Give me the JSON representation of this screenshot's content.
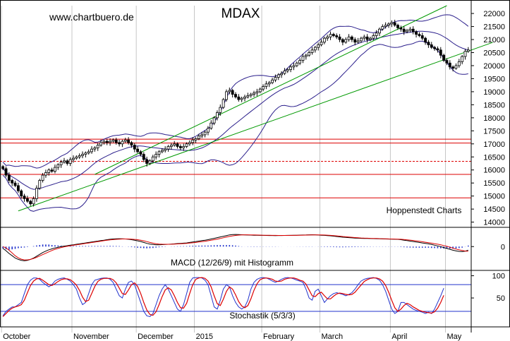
{
  "watermark": "www.chartbuero.de",
  "credit": "Hoppenstedt Charts",
  "colors": {
    "background": "#ffffff",
    "grid": "#b8b8b8",
    "channel": "#009900",
    "bollinger": "#2b1f8c",
    "support_resistance": "#dd0000",
    "macd_line": "#000000",
    "macd_signal": "#dd0000",
    "macd_hist": "#2233cc",
    "stoch_k": "#2233cc",
    "stoch_d": "#dd0000"
  },
  "chart_data": [
    {
      "type": "candlestick",
      "title": "MDAX",
      "y_ticks": [
        22000,
        21500,
        21000,
        20500,
        20000,
        19500,
        19000,
        18500,
        18000,
        17500,
        17000,
        16500,
        16000,
        15500,
        15000,
        14500,
        14000
      ],
      "ylim": [
        13800,
        22300
      ],
      "x_labels": [
        "October",
        "November",
        "December",
        "2015",
        "February",
        "March",
        "April",
        "May"
      ],
      "x_label_index": [
        0,
        23,
        44,
        63,
        85,
        104,
        127,
        145
      ],
      "period_count": 153,
      "closes": [
        16050,
        15800,
        15600,
        15500,
        15400,
        15200,
        15000,
        14900,
        14800,
        14700,
        14900,
        15300,
        15600,
        15800,
        15900,
        16000,
        15950,
        16100,
        16200,
        16300,
        16350,
        16250,
        16400,
        16450,
        16500,
        16550,
        16600,
        16650,
        16700,
        16800,
        16850,
        16950,
        17050,
        17100,
        17050,
        17100,
        17150,
        17050,
        17000,
        17100,
        17150,
        17050,
        16950,
        16800,
        16700,
        16600,
        16400,
        16250,
        16350,
        16500,
        16600,
        16700,
        16750,
        16800,
        16900,
        16950,
        17000,
        16900,
        16850,
        16900,
        17000,
        17050,
        17150,
        17200,
        17300,
        17350,
        17450,
        17600,
        17800,
        18000,
        18200,
        18400,
        18700,
        19000,
        19050,
        18900,
        18800,
        18700,
        18750,
        18800,
        18850,
        18900,
        18950,
        19000,
        19100,
        19200,
        19300,
        19350,
        19450,
        19550,
        19650,
        19700,
        19800,
        19850,
        19950,
        20000,
        20100,
        20200,
        20350,
        20400,
        20500,
        20600,
        20700,
        20800,
        20900,
        21050,
        21100,
        21200,
        21150,
        21100,
        21000,
        20900,
        21000,
        21100,
        21000,
        20900,
        20950,
        21050,
        21100,
        21000,
        21050,
        21150,
        21250,
        21400,
        21500,
        21550,
        21600,
        21650,
        21550,
        21450,
        21400,
        21300,
        21350,
        21400,
        21300,
        21200,
        21150,
        21050,
        20900,
        20800,
        20700,
        20650,
        20600,
        20400,
        20200,
        20100,
        19950,
        19900,
        20000,
        20150,
        20350,
        20550,
        20600
      ],
      "horizontal_lines": [
        {
          "value": 17180,
          "style": "solid"
        },
        {
          "value": 17030,
          "style": "solid"
        },
        {
          "value": 16330,
          "style": "dashed"
        },
        {
          "value": 15830,
          "style": "solid"
        },
        {
          "value": 14930,
          "style": "solid"
        }
      ],
      "trend_channel": {
        "upper": {
          "from": {
            "i": 30,
            "v": 15830
          },
          "to": {
            "i": 145,
            "v": 22300
          }
        },
        "lower": {
          "from": {
            "i": 5,
            "v": 14430
          },
          "to": {
            "i": 160,
            "v": 20890
          }
        }
      }
    },
    {
      "type": "line",
      "title": "MACD (12/26/9) mit Histogramm",
      "y_ticks": [
        0
      ],
      "ylim": [
        -520,
        420
      ],
      "series": [
        {
          "role": "macd",
          "values": [
            -40,
            -90,
            -150,
            -200,
            -250,
            -280,
            -300,
            -310,
            -300,
            -280,
            -250,
            -210,
            -170,
            -130,
            -100,
            -70,
            -50,
            -30,
            -15,
            0,
            10,
            20,
            30,
            40,
            50,
            60,
            70,
            80,
            90,
            100,
            110,
            120,
            130,
            140,
            150,
            160,
            165,
            170,
            172,
            170,
            165,
            160,
            150,
            140,
            125,
            110,
            90,
            70,
            55,
            45,
            40,
            40,
            42,
            45,
            50,
            55,
            60,
            65,
            70,
            75,
            80,
            90,
            100,
            110,
            120,
            130,
            140,
            150,
            165,
            180,
            195,
            210,
            225,
            240,
            255,
            262,
            265,
            262,
            258,
            255,
            252,
            250,
            248,
            246,
            245,
            244,
            243,
            242,
            241,
            240,
            241,
            242,
            243,
            244,
            245,
            246,
            248,
            250,
            252,
            254,
            256,
            258,
            256,
            252,
            248,
            244,
            240,
            235,
            228,
            220,
            212,
            205,
            200,
            195,
            190,
            186,
            183,
            180,
            178,
            176,
            175,
            174,
            172,
            170,
            168,
            166,
            164,
            162,
            160,
            158,
            150,
            140,
            130,
            120,
            110,
            100,
            90,
            80,
            70,
            60,
            45,
            30,
            15,
            0,
            -20,
            -40,
            -60,
            -80,
            -95,
            -105,
            -110,
            -100,
            -80
          ]
        },
        {
          "role": "signal",
          "values": [
            0,
            -30,
            -80,
            -140,
            -200,
            -245,
            -275,
            -290,
            -290,
            -280,
            -260,
            -235,
            -205,
            -175,
            -145,
            -115,
            -85,
            -60,
            -40,
            -20,
            -5,
            8,
            18,
            28,
            38,
            48,
            58,
            68,
            78,
            88,
            98,
            108,
            118,
            128,
            138,
            145,
            152,
            158,
            162,
            165,
            166,
            165,
            162,
            157,
            150,
            140,
            125,
            108,
            90,
            75,
            62,
            55,
            52,
            50,
            50,
            52,
            55,
            58,
            62,
            66,
            70,
            76,
            83,
            91,
            99,
            108,
            117,
            127,
            138,
            150,
            163,
            177,
            192,
            207,
            221,
            233,
            243,
            250,
            254,
            256,
            256,
            255,
            254,
            252,
            250,
            248,
            247,
            246,
            245,
            244,
            243,
            243,
            243,
            243,
            244,
            245,
            246,
            247,
            249,
            250,
            252,
            254,
            255,
            255,
            254,
            252,
            249,
            245,
            240,
            234,
            227,
            220,
            214,
            208,
            202,
            197,
            192,
            188,
            185,
            182,
            180,
            178,
            176,
            174,
            172,
            170,
            168,
            166,
            164,
            162,
            159,
            154,
            148,
            141,
            133,
            124,
            115,
            105,
            95,
            85,
            75,
            63,
            51,
            38,
            22,
            5,
            -15,
            -35,
            -55,
            -72,
            -86,
            -97,
            -102
          ]
        },
        {
          "role": "histogram",
          "values": [
            -40,
            -60,
            -70,
            -60,
            -50,
            -35,
            -25,
            -20,
            -10,
            0,
            10,
            25,
            35,
            45,
            45,
            45,
            35,
            30,
            25,
            20,
            15,
            12,
            12,
            12,
            12,
            12,
            12,
            12,
            12,
            12,
            12,
            12,
            12,
            12,
            12,
            15,
            13,
            12,
            10,
            5,
            -1,
            -5,
            -12,
            -17,
            -25,
            -30,
            -35,
            -38,
            -35,
            -30,
            -22,
            -15,
            -10,
            -5,
            0,
            3,
            5,
            7,
            8,
            9,
            10,
            14,
            17,
            19,
            21,
            22,
            23,
            23,
            27,
            30,
            32,
            33,
            33,
            33,
            34,
            29,
            22,
            12,
            4,
            -1,
            -4,
            -5,
            -6,
            -6,
            -5,
            -4,
            -4,
            -4,
            -4,
            -4,
            -2,
            -1,
            0,
            1,
            1,
            1,
            2,
            3,
            3,
            4,
            4,
            4,
            1,
            -3,
            -6,
            -8,
            -9,
            -10,
            -12,
            -14,
            -15,
            -15,
            -14,
            -13,
            -12,
            -11,
            -9,
            -8,
            -7,
            -6,
            -5,
            -4,
            -4,
            -4,
            -4,
            -4,
            -4,
            -4,
            -4,
            -4,
            -9,
            -14,
            -18,
            -21,
            -23,
            -24,
            -25,
            -25,
            -25,
            -25,
            -30,
            -33,
            -36,
            -38,
            -42,
            -45,
            -45,
            -45,
            -40,
            -33,
            -24,
            -3,
            22
          ]
        }
      ]
    },
    {
      "type": "line",
      "title": "Stochastik (5/3/3)",
      "y_ticks": [
        100,
        50
      ],
      "ylim": [
        -15,
        112
      ],
      "reference_lines": [
        80,
        20
      ],
      "series": [
        {
          "role": "%K",
          "values": [
            10,
            20,
            25,
            30,
            30,
            35,
            40,
            60,
            80,
            90,
            95,
            95,
            92,
            85,
            80,
            75,
            80,
            88,
            92,
            94,
            95,
            92,
            88,
            80,
            70,
            50,
            35,
            40,
            60,
            80,
            90,
            92,
            94,
            95,
            95,
            92,
            85,
            70,
            55,
            50,
            70,
            85,
            88,
            80,
            60,
            40,
            20,
            10,
            8,
            15,
            35,
            55,
            70,
            80,
            70,
            55,
            40,
            25,
            20,
            35,
            60,
            85,
            95,
            96,
            96,
            95,
            90,
            80,
            55,
            30,
            25,
            45,
            70,
            80,
            75,
            55,
            40,
            30,
            25,
            30,
            45,
            70,
            85,
            92,
            95,
            96,
            95,
            92,
            88,
            85,
            88,
            92,
            95,
            96,
            95,
            93,
            90,
            88,
            85,
            70,
            50,
            45,
            65,
            70,
            55,
            40,
            48,
            55,
            60,
            62,
            60,
            58,
            55,
            58,
            62,
            70,
            80,
            88,
            92,
            94,
            95,
            96,
            94,
            90,
            80,
            65,
            45,
            25,
            15,
            20,
            40,
            40,
            35,
            30,
            25,
            22,
            20,
            18,
            15,
            18,
            15,
            25,
            40,
            55,
            72
          ]
        },
        {
          "role": "%D",
          "values": [
            8,
            15,
            22,
            27,
            30,
            32,
            35,
            45,
            62,
            78,
            88,
            93,
            94,
            90,
            85,
            80,
            78,
            82,
            87,
            91,
            93,
            93,
            91,
            86,
            79,
            67,
            52,
            42,
            45,
            60,
            76,
            87,
            92,
            94,
            94,
            94,
            91,
            84,
            72,
            60,
            58,
            68,
            80,
            84,
            76,
            60,
            40,
            23,
            13,
            11,
            19,
            35,
            53,
            68,
            73,
            68,
            55,
            40,
            28,
            27,
            38,
            60,
            80,
            92,
            95,
            96,
            94,
            88,
            75,
            55,
            37,
            33,
            47,
            65,
            75,
            70,
            57,
            42,
            32,
            28,
            33,
            48,
            67,
            82,
            91,
            94,
            95,
            94,
            92,
            88,
            87,
            88,
            92,
            94,
            95,
            95,
            93,
            90,
            88,
            81,
            68,
            55,
            53,
            60,
            63,
            55,
            48,
            48,
            54,
            59,
            61,
            60,
            58,
            57,
            58,
            63,
            71,
            79,
            87,
            91,
            94,
            95,
            95,
            93,
            88,
            78,
            63,
            45,
            28,
            20,
            25,
            33,
            38,
            35,
            30,
            26,
            22,
            20,
            18,
            17,
            16,
            19,
            27,
            40,
            56
          ]
        }
      ]
    }
  ]
}
